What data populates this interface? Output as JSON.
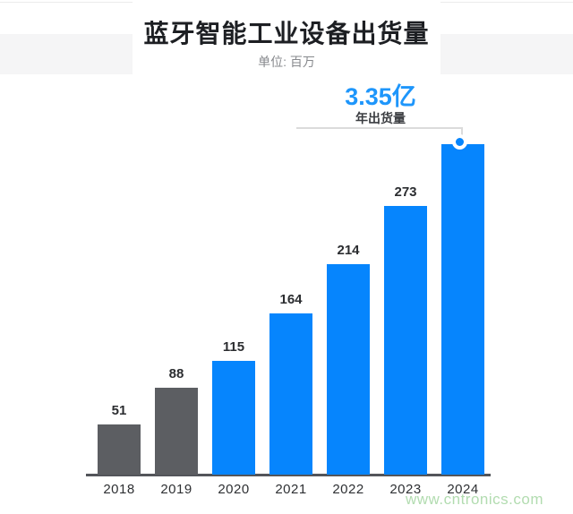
{
  "page": {
    "title": "蓝牙智能工业设备出货量",
    "subtitle": "单位: 百万",
    "watermark": "www.cntronics.com"
  },
  "annotation": {
    "value_text": "3.35亿",
    "label": "年出货量"
  },
  "colors": {
    "bar_blue": "#0685fd",
    "bar_gray": "#5c5e62",
    "annotation_blue": "#1e96fb",
    "axis_line": "#53555a",
    "header_band": "#f5f5f6",
    "bracket_line": "#dbdbdb",
    "watermark_green": "#b2dcb0"
  },
  "chart_data": {
    "type": "bar",
    "title": "蓝牙智能工业设备出货量",
    "xlabel": "",
    "ylabel": "单位: 百万",
    "grid": false,
    "legend": "none",
    "categories": [
      "2018",
      "2019",
      "2020",
      "2021",
      "2022",
      "2023",
      "2024"
    ],
    "values": [
      51,
      88,
      115,
      164,
      214,
      273,
      335
    ],
    "value_labels": [
      "51",
      "88",
      "115",
      "164",
      "214",
      "273",
      ""
    ],
    "bar_color_keys": [
      "bar_gray",
      "bar_gray",
      "bar_blue",
      "bar_blue",
      "bar_blue",
      "bar_blue",
      "bar_blue"
    ],
    "ylim": [
      0,
      360
    ],
    "highlight": {
      "category": "2024",
      "callout_value": "3.35亿",
      "callout_label": "年出货量",
      "marker": "circle-on-bar-top"
    }
  }
}
